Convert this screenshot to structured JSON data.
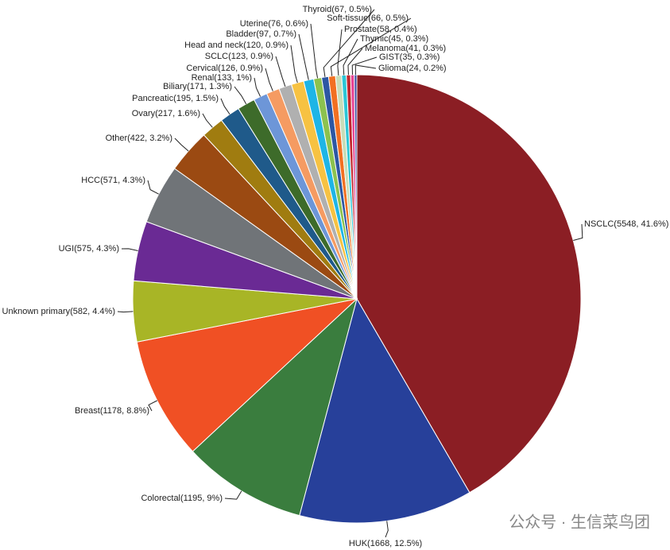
{
  "chart_data": {
    "type": "pie",
    "categories": [
      "NSCLC(5548, 41.6%)",
      "HUK(1668, 12.5%)",
      "Colorectal(1195, 9%)",
      "Breast(1178, 8.8%)",
      "Unknown primary(582, 4.4%)",
      "UGI(575, 4.3%)",
      "HCC(571, 4.3%)",
      "Other(422, 3.2%)",
      "Ovary(217, 1.6%)",
      "Pancreatic(195, 1.5%)",
      "Biliary(171, 1.3%)",
      "Renal(133, 1%)",
      "Cervical(126, 0.9%)",
      "SCLC(123, 0.9%)",
      "Head and neck(120, 0.9%)",
      "Bladder(97, 0.7%)",
      "Uterine(76, 0.6%)",
      "Thyroid(67, 0.5%)",
      "Soft-tissue(66, 0.5%)",
      "Prostate(58, 0.4%)",
      "Thymic(45, 0.3%)",
      "Melanoma(41, 0.3%)",
      "GIST(35, 0.3%)",
      "Glioma(24, 0.2%)"
    ],
    "values": [
      5548,
      1668,
      1195,
      1178,
      582,
      575,
      571,
      422,
      217,
      195,
      171,
      133,
      126,
      123,
      120,
      97,
      76,
      67,
      66,
      58,
      45,
      41,
      35,
      24
    ],
    "colors": [
      "#8b1e24",
      "#27409a",
      "#3a7d3e",
      "#f05024",
      "#a8b526",
      "#6a2a94",
      "#707478",
      "#9b4a12",
      "#a07c10",
      "#1f5a8a",
      "#3d6b2a",
      "#6d96d8",
      "#f59b62",
      "#b0b0b0",
      "#f7c242",
      "#1eb5e6",
      "#8cc24f",
      "#2d57a3",
      "#f27022",
      "#c8ddb8",
      "#2cc6d6",
      "#c0262d",
      "#e84393",
      "#3b4ba0"
    ]
  },
  "watermark": "公众号 · 生信菜鸟团"
}
